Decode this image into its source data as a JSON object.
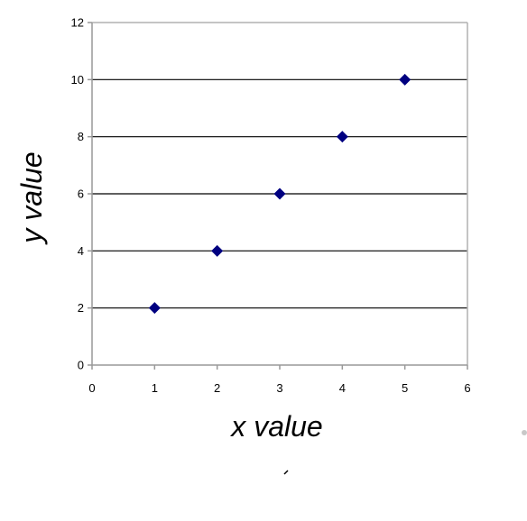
{
  "chart_data": {
    "type": "scatter",
    "title": "",
    "xlabel": "x value",
    "ylabel": "y value",
    "xlim": [
      0,
      6
    ],
    "ylim": [
      0,
      12
    ],
    "xticks": [
      0,
      1,
      2,
      3,
      4,
      5,
      6
    ],
    "yticks": [
      0,
      2,
      4,
      6,
      8,
      10,
      12
    ],
    "grid": "horizontal",
    "legend": "none",
    "series": [
      {
        "marker": "diamond",
        "color": "#000080",
        "points": [
          {
            "x": 1,
            "y": 2
          },
          {
            "x": 2,
            "y": 4
          },
          {
            "x": 3,
            "y": 6
          },
          {
            "x": 4,
            "y": 8
          },
          {
            "x": 5,
            "y": 10
          }
        ]
      }
    ]
  }
}
